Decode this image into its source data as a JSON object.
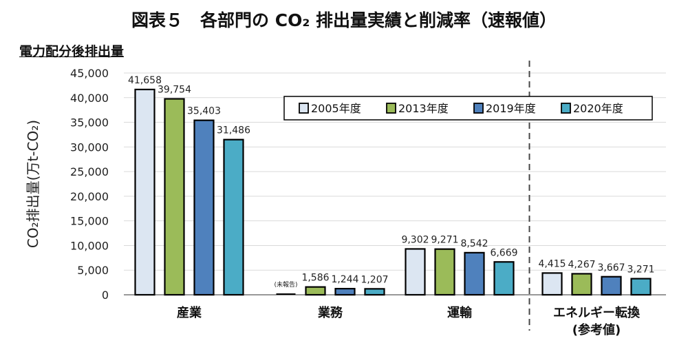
{
  "chart_data": {
    "type": "bar",
    "title": "図表５　各部門の CO₂ 排出量実績と削減率（速報値）",
    "subtitle": "電力配分後排出量",
    "ylabel": "CO₂排出量(万t-CO₂)",
    "xlabel": "",
    "ylim": [
      0,
      45000
    ],
    "yticks": [
      "0",
      "5,000",
      "10,000",
      "15,000",
      "20,000",
      "25,000",
      "30,000",
      "35,000",
      "40,000",
      "45,000"
    ],
    "categories": [
      "産業",
      "業務",
      "運輸",
      "エネルギー転換\n(参考値)"
    ],
    "series": [
      {
        "name": "2005年度",
        "values": [
          41658,
          null,
          9302,
          4415
        ],
        "labels": [
          "41,658",
          "(未報告)",
          "9,302",
          "4,415"
        ],
        "color": "#dce6f2"
      },
      {
        "name": "2013年度",
        "values": [
          39754,
          1586,
          9271,
          4267
        ],
        "labels": [
          "39,754",
          "1,586",
          "9,271",
          "4,267"
        ],
        "color": "#9bbb59"
      },
      {
        "name": "2019年度",
        "values": [
          35403,
          1244,
          8542,
          3667
        ],
        "labels": [
          "35,403",
          "1,244",
          "8,542",
          "3,667"
        ],
        "color": "#4f81bd"
      },
      {
        "name": "2020年度",
        "values": [
          31486,
          1207,
          6669,
          3271
        ],
        "labels": [
          "31,486",
          "1,207",
          "6,669",
          "3,271"
        ],
        "color": "#4bacc6"
      }
    ],
    "grid": true,
    "legend_position": "top-right",
    "separator_before_category": 3
  }
}
